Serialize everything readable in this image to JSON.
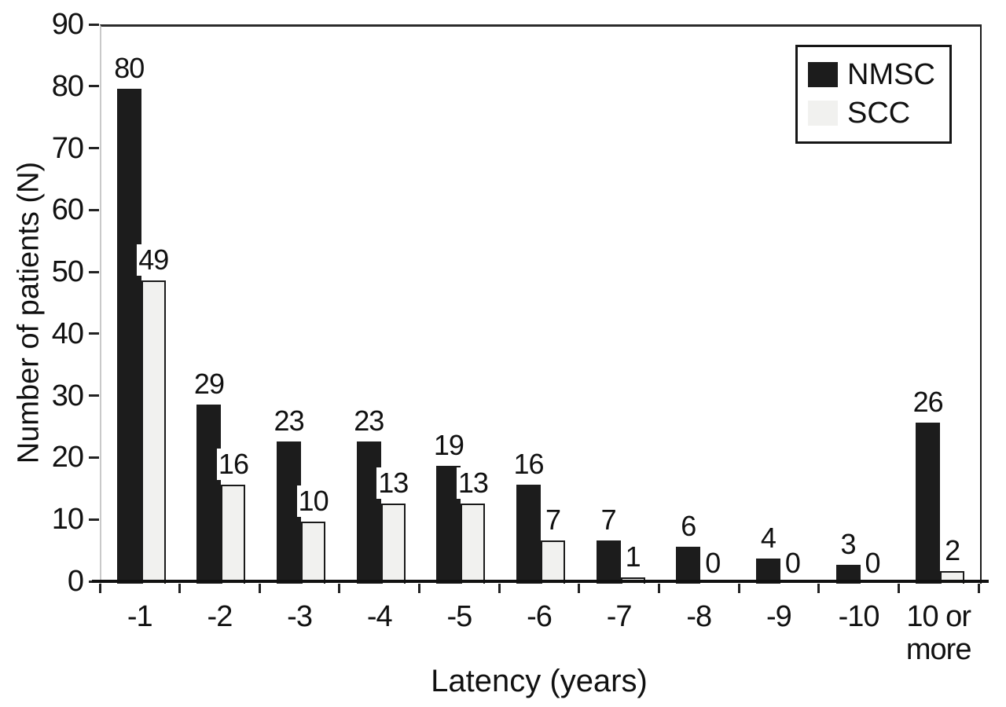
{
  "chart_data": {
    "type": "bar",
    "title": "",
    "xlabel": "Latency (years)",
    "ylabel": "Number of patients (N)",
    "categories": [
      "-1",
      "-2",
      "-3",
      "-4",
      "-5",
      "-6",
      "-7",
      "-8",
      "-9",
      "-10",
      "10 or more"
    ],
    "series": [
      {
        "name": "NMSC",
        "color": "#1c1c1c",
        "values": [
          80,
          29,
          23,
          23,
          19,
          16,
          7,
          6,
          4,
          3,
          26
        ]
      },
      {
        "name": "SCC",
        "color": "#f1f1ef",
        "border_color": "#1a1a1a",
        "values": [
          49,
          16,
          10,
          13,
          13,
          7,
          1,
          0,
          0,
          0,
          2
        ]
      }
    ],
    "ylim": [
      0,
      90
    ],
    "yticks": [
      0,
      10,
      20,
      30,
      40,
      50,
      60,
      70,
      80,
      90
    ],
    "grid": false,
    "data_labels": true,
    "legend_position": "top-right"
  },
  "colors": {
    "background": "#ffffff",
    "text": "#111111",
    "axis_line": "#111111",
    "top_border": "#2b2b2b",
    "right_border": "#1b1b1b",
    "left_spine": "#c9c9c9"
  }
}
